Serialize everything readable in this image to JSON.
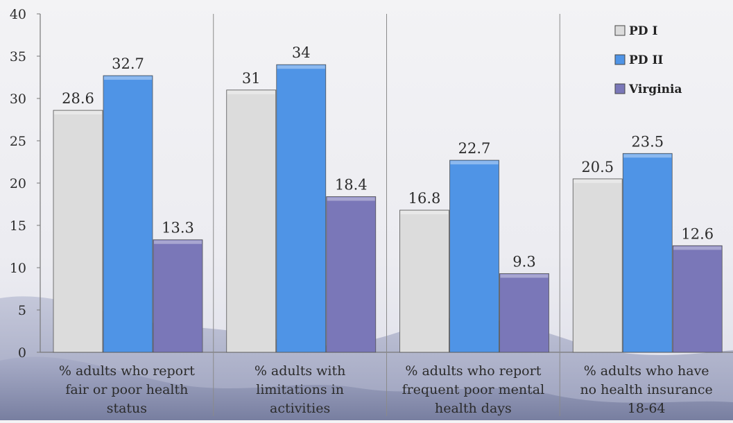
{
  "chart_data": {
    "type": "bar",
    "categories": [
      [
        "% adults who report",
        "fair or poor health",
        "status"
      ],
      [
        "% adults with",
        "limitations in",
        "activities"
      ],
      [
        "% adults who report",
        "frequent poor mental",
        "health days"
      ],
      [
        "% adults who have",
        "no health insurance",
        "18-64"
      ]
    ],
    "series": [
      {
        "name": "PD I",
        "values": [
          28.6,
          31,
          16.8,
          20.5
        ],
        "color": "#dcdcdc"
      },
      {
        "name": "PD II",
        "values": [
          32.7,
          34,
          22.7,
          23.5
        ],
        "color": "#4f94e6"
      },
      {
        "name": "Virginia",
        "values": [
          13.3,
          18.4,
          9.3,
          12.6
        ],
        "color": "#7a77b8"
      }
    ],
    "ylim": [
      0,
      40
    ],
    "yticks": [
      0,
      5,
      10,
      15,
      20,
      25,
      30,
      35,
      40
    ],
    "grid": false,
    "legend": "top-right"
  }
}
